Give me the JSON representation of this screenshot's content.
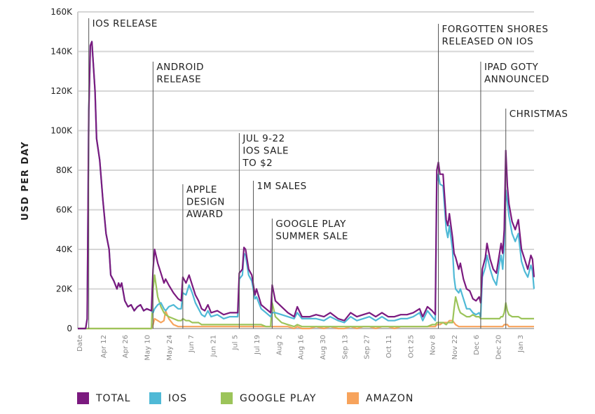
{
  "chart_data": {
    "type": "line",
    "title": "",
    "xlabel": "Date",
    "ylabel": "USD PER DAY",
    "ylim": [
      0,
      160
    ],
    "yticks": [
      "0",
      "20K",
      "40K",
      "60K",
      "80K",
      "100K",
      "120K",
      "140K",
      "160K"
    ],
    "grid": "horizontal",
    "legend_position": "bottom",
    "xticks": [
      {
        "date": "2014-04-12",
        "label": "Apr 12"
      },
      {
        "date": "2014-04-26",
        "label": "Apr 26"
      },
      {
        "date": "2014-05-10",
        "label": "May 10"
      },
      {
        "date": "2014-05-24",
        "label": "May 24"
      },
      {
        "date": "2014-06-07",
        "label": "Jun 7"
      },
      {
        "date": "2014-06-21",
        "label": "Jun 21"
      },
      {
        "date": "2014-07-05",
        "label": "Jul 5"
      },
      {
        "date": "2014-07-19",
        "label": "Jul 19"
      },
      {
        "date": "2014-08-02",
        "label": "Aug 2"
      },
      {
        "date": "2014-08-16",
        "label": "Aug 16"
      },
      {
        "date": "2014-08-30",
        "label": "Aug 30"
      },
      {
        "date": "2014-09-13",
        "label": "Sep 13"
      },
      {
        "date": "2014-09-27",
        "label": "Sep 27"
      },
      {
        "date": "2014-10-11",
        "label": "Oct 11"
      },
      {
        "date": "2014-10-25",
        "label": "Oct 25"
      },
      {
        "date": "2014-11-08",
        "label": "Nov 8"
      },
      {
        "date": "2014-11-22",
        "label": "Nov 22"
      },
      {
        "date": "2014-12-06",
        "label": "Dec 6"
      },
      {
        "date": "2014-12-20",
        "label": "Dec 20"
      },
      {
        "date": "2015-01-03",
        "label": "Jan 3"
      }
    ],
    "x": [
      "2014-03-27",
      "2014-04-01",
      "2014-04-02",
      "2014-04-03",
      "2014-04-04",
      "2014-04-05",
      "2014-04-07",
      "2014-04-08",
      "2014-04-10",
      "2014-04-12",
      "2014-04-14",
      "2014-04-16",
      "2014-04-17",
      "2014-04-19",
      "2014-04-21",
      "2014-04-22",
      "2014-04-23",
      "2014-04-24",
      "2014-04-26",
      "2014-04-28",
      "2014-04-30",
      "2014-05-02",
      "2014-05-04",
      "2014-05-06",
      "2014-05-08",
      "2014-05-10",
      "2014-05-13",
      "2014-05-14",
      "2014-05-15",
      "2014-05-17",
      "2014-05-19",
      "2014-05-21",
      "2014-05-22",
      "2014-05-24",
      "2014-05-27",
      "2014-05-30",
      "2014-06-01",
      "2014-06-02",
      "2014-06-04",
      "2014-06-06",
      "2014-06-08",
      "2014-06-10",
      "2014-06-12",
      "2014-06-14",
      "2014-06-16",
      "2014-06-18",
      "2014-06-20",
      "2014-06-24",
      "2014-06-28",
      "2014-07-02",
      "2014-07-07",
      "2014-07-08",
      "2014-07-10",
      "2014-07-11",
      "2014-07-12",
      "2014-07-14",
      "2014-07-16",
      "2014-07-18",
      "2014-07-19",
      "2014-07-22",
      "2014-07-25",
      "2014-07-28",
      "2014-07-29",
      "2014-07-31",
      "2014-08-04",
      "2014-08-08",
      "2014-08-12",
      "2014-08-14",
      "2014-08-17",
      "2014-08-22",
      "2014-08-26",
      "2014-08-31",
      "2014-09-04",
      "2014-09-09",
      "2014-09-13",
      "2014-09-17",
      "2014-09-21",
      "2014-09-25",
      "2014-09-29",
      "2014-10-03",
      "2014-10-07",
      "2014-10-11",
      "2014-10-15",
      "2014-10-19",
      "2014-10-23",
      "2014-10-27",
      "2014-10-31",
      "2014-11-02",
      "2014-11-05",
      "2014-11-08",
      "2014-11-10",
      "2014-11-11",
      "2014-11-12",
      "2014-11-13",
      "2014-11-15",
      "2014-11-17",
      "2014-11-18",
      "2014-11-19",
      "2014-11-21",
      "2014-11-22",
      "2014-11-23",
      "2014-11-25",
      "2014-11-26",
      "2014-11-28",
      "2014-11-30",
      "2014-12-02",
      "2014-12-04",
      "2014-12-06",
      "2014-12-08",
      "2014-12-09",
      "2014-12-10",
      "2014-12-12",
      "2014-12-13",
      "2014-12-15",
      "2014-12-17",
      "2014-12-19",
      "2014-12-21",
      "2014-12-22",
      "2014-12-23",
      "2014-12-24",
      "2014-12-25",
      "2014-12-26",
      "2014-12-27",
      "2014-12-29",
      "2014-12-31",
      "2015-01-02",
      "2015-01-04",
      "2015-01-06",
      "2015-01-08",
      "2015-01-10",
      "2015-01-11",
      "2015-01-12"
    ],
    "series": [
      {
        "name": "AMAZON",
        "color": "#f7a35c",
        "values": [
          0,
          0,
          0,
          0,
          0,
          0,
          0,
          0,
          0,
          0,
          0,
          0,
          0,
          0,
          0,
          0,
          0,
          0,
          0,
          0,
          0,
          0,
          0,
          0,
          0,
          0,
          0,
          2,
          5,
          4,
          3,
          4,
          9,
          5,
          2,
          1,
          1,
          1,
          1,
          1,
          1,
          1,
          1,
          1,
          1,
          1,
          1,
          1,
          1,
          1,
          1,
          1,
          1,
          1,
          1,
          1,
          1,
          1,
          1,
          1,
          1,
          1,
          1,
          1,
          1,
          1,
          0,
          1,
          0,
          0,
          1,
          0,
          1,
          0,
          0,
          1,
          0,
          1,
          1,
          0,
          1,
          1,
          0,
          1,
          1,
          1,
          1,
          1,
          1,
          1,
          1,
          2,
          2,
          2,
          3,
          3,
          3,
          4,
          4,
          3,
          2,
          1,
          1,
          1,
          1,
          1,
          1,
          1,
          1,
          1,
          1,
          1,
          1,
          1,
          1,
          1,
          1,
          1,
          1,
          2,
          2,
          2,
          1,
          1,
          1,
          1,
          1,
          1,
          1,
          1,
          1,
          1
        ]
      },
      {
        "name": "GOOGLE PLAY",
        "color": "#9cc45a",
        "values": [
          0,
          0,
          0,
          0,
          0,
          0,
          0,
          0,
          0,
          0,
          0,
          0,
          0,
          0,
          0,
          0,
          0,
          0,
          0,
          0,
          0,
          0,
          0,
          0,
          0,
          0,
          0,
          20,
          27,
          16,
          11,
          8,
          7,
          6,
          5,
          4,
          4,
          5,
          4,
          4,
          3,
          3,
          3,
          2,
          2,
          2,
          2,
          2,
          2,
          2,
          2,
          2,
          2,
          2,
          2,
          2,
          2,
          2,
          2,
          2,
          1,
          1,
          13,
          6,
          3,
          2,
          1,
          2,
          1,
          1,
          1,
          1,
          1,
          1,
          1,
          1,
          1,
          1,
          1,
          1,
          1,
          1,
          1,
          1,
          1,
          1,
          1,
          1,
          1,
          2,
          2,
          3,
          3,
          3,
          3,
          2,
          3,
          3,
          3,
          10,
          16,
          10,
          8,
          7,
          6,
          6,
          7,
          6,
          6,
          5,
          5,
          5,
          5,
          5,
          5,
          5,
          5,
          6,
          6,
          8,
          13,
          9,
          7,
          6,
          6,
          6,
          5,
          5,
          5,
          5,
          5,
          5
        ]
      },
      {
        "name": "IOS",
        "color": "#4fb9d6",
        "values": [
          0,
          0,
          5,
          110,
          143,
          145,
          120,
          96,
          85,
          65,
          48,
          40,
          27,
          24,
          20,
          23,
          21,
          23,
          14,
          11,
          12,
          9,
          11,
          12,
          9,
          10,
          9,
          8,
          10,
          12,
          13,
          10,
          9,
          11,
          12,
          10,
          10,
          18,
          17,
          22,
          18,
          13,
          10,
          7,
          6,
          9,
          6,
          7,
          5,
          6,
          6,
          25,
          27,
          38,
          37,
          27,
          24,
          15,
          16,
          10,
          8,
          6,
          8,
          8,
          7,
          6,
          5,
          8,
          5,
          5,
          5,
          4,
          6,
          4,
          3,
          6,
          4,
          5,
          6,
          4,
          6,
          4,
          4,
          5,
          5,
          6,
          8,
          4,
          9,
          6,
          4,
          74,
          78,
          73,
          72,
          50,
          46,
          52,
          40,
          26,
          20,
          18,
          20,
          15,
          10,
          10,
          8,
          7,
          8,
          6,
          26,
          31,
          37,
          30,
          25,
          22,
          33,
          37,
          30,
          42,
          70,
          64,
          57,
          48,
          44,
          48,
          34,
          29,
          26,
          32,
          29,
          20
        ]
      },
      {
        "name": "TOTAL",
        "color": "#7b1a7f",
        "values": [
          0,
          0,
          5,
          110,
          143,
          145,
          120,
          96,
          85,
          65,
          48,
          40,
          27,
          24,
          20,
          23,
          21,
          23,
          14,
          11,
          12,
          9,
          11,
          12,
          9,
          10,
          9,
          30,
          40,
          33,
          28,
          23,
          25,
          22,
          18,
          15,
          14,
          26,
          23,
          27,
          22,
          17,
          14,
          10,
          9,
          12,
          8,
          9,
          7,
          8,
          8,
          28,
          30,
          41,
          40,
          30,
          27,
          17,
          20,
          12,
          10,
          8,
          22,
          14,
          11,
          8,
          6,
          11,
          6,
          6,
          7,
          6,
          8,
          5,
          4,
          8,
          6,
          7,
          8,
          6,
          8,
          6,
          6,
          7,
          7,
          8,
          10,
          6,
          11,
          9,
          7,
          80,
          84,
          78,
          78,
          55,
          52,
          58,
          46,
          38,
          36,
          30,
          33,
          25,
          20,
          19,
          15,
          14,
          16,
          13,
          30,
          36,
          43,
          35,
          30,
          28,
          38,
          43,
          38,
          50,
          90,
          72,
          63,
          54,
          50,
          55,
          40,
          35,
          30,
          37,
          35,
          26
        ]
      }
    ],
    "annotations": [
      {
        "date": "2014-04-03",
        "lines": [
          "IOS RELEASE"
        ]
      },
      {
        "date": "2014-05-14",
        "lines": [
          "ANDROID",
          "RELEASE"
        ]
      },
      {
        "date": "2014-06-02",
        "lines": [
          "APPLE",
          "DESIGN",
          "AWARD"
        ]
      },
      {
        "date": "2014-07-08",
        "lines": [
          "JUL 9-22",
          "IOS SALE",
          "TO $2"
        ]
      },
      {
        "date": "2014-07-17",
        "lines": [
          "1M SALES"
        ]
      },
      {
        "date": "2014-07-29",
        "lines": [
          "GOOGLE PLAY",
          "SUMMER SALE"
        ]
      },
      {
        "date": "2014-11-12",
        "lines": [
          "FORGOTTEN SHORES",
          "RELEASED ON IOS"
        ]
      },
      {
        "date": "2014-12-09",
        "lines": [
          "IPAD GOTY",
          "ANNOUNCED"
        ]
      },
      {
        "date": "2014-12-25",
        "lines": [
          "CHRISTMAS"
        ]
      }
    ]
  },
  "legend": [
    {
      "label": "TOTAL",
      "color": "#7b1a7f"
    },
    {
      "label": "IOS",
      "color": "#4fb9d6"
    },
    {
      "label": "GOOGLE PLAY",
      "color": "#9cc45a"
    },
    {
      "label": "AMAZON",
      "color": "#f7a35c"
    }
  ]
}
